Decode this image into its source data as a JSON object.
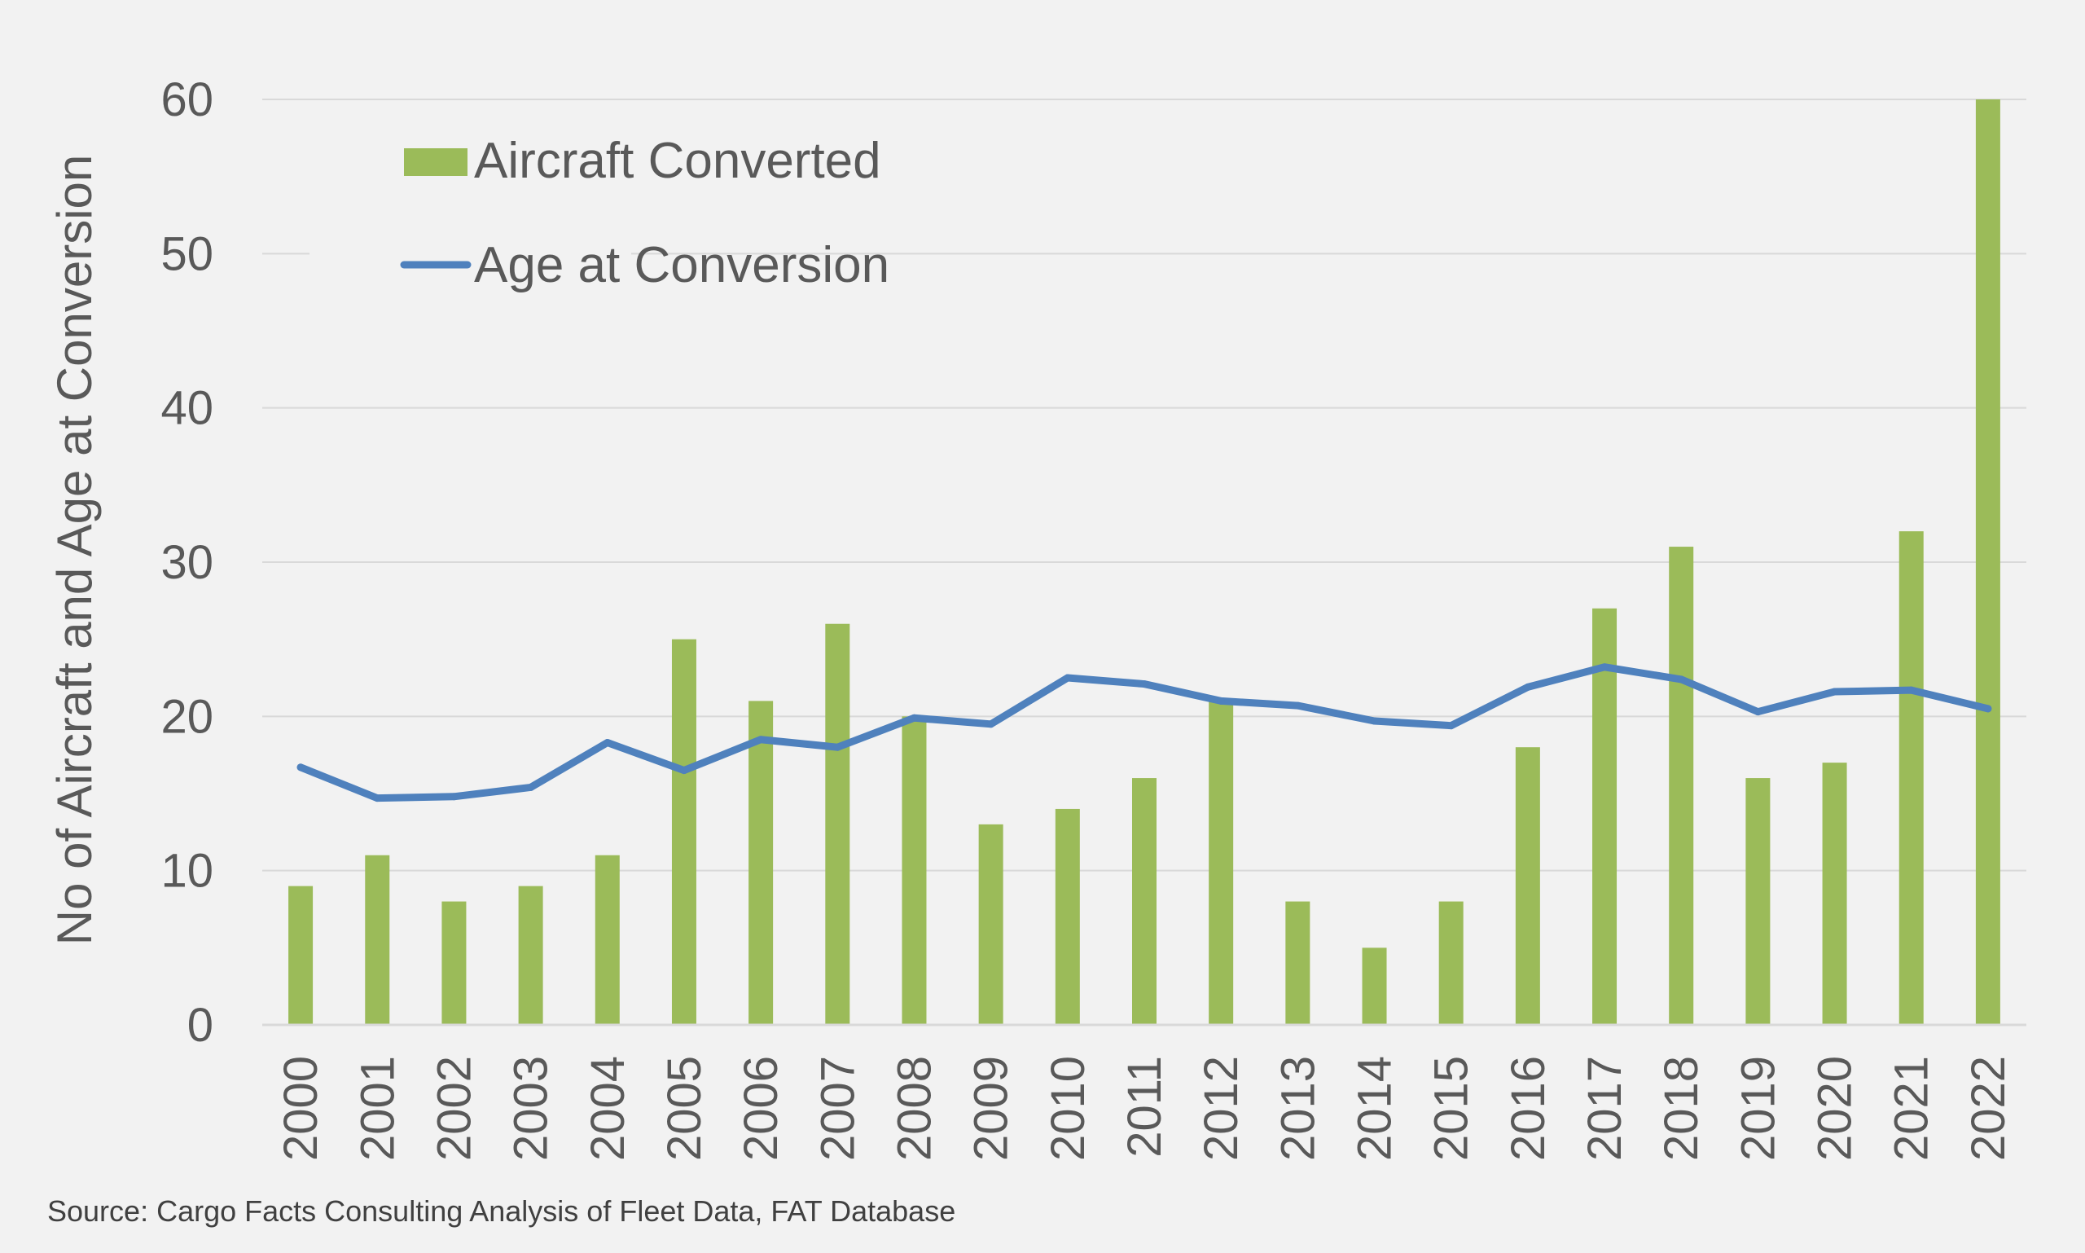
{
  "chart_data": {
    "type": "bar",
    "title": "",
    "xlabel": "",
    "ylabel": "No of Aircraft and Age at Conversion",
    "ylim": [
      0,
      60
    ],
    "yticks": [
      0,
      10,
      20,
      30,
      40,
      50,
      60
    ],
    "grid": true,
    "legend_position": "top-left",
    "categories": [
      "2000",
      "2001",
      "2002",
      "2003",
      "2004",
      "2005",
      "2006",
      "2007",
      "2008",
      "2009",
      "2010",
      "2011",
      "2012",
      "2013",
      "2014",
      "2015",
      "2016",
      "2017",
      "2018",
      "2019",
      "2020",
      "2021",
      "2022"
    ],
    "series": [
      {
        "name": "Aircraft Converted",
        "type": "bar",
        "color": "#9bbb59",
        "values": [
          9,
          11,
          8,
          9,
          11,
          25,
          21,
          26,
          20,
          13,
          14,
          16,
          21,
          8,
          5,
          8,
          18,
          27,
          31,
          16,
          17,
          32,
          60
        ]
      },
      {
        "name": "Age at Conversion",
        "type": "line",
        "color": "#4f81bd",
        "values": [
          16.7,
          14.7,
          14.8,
          15.4,
          18.3,
          16.5,
          18.5,
          18.0,
          19.9,
          19.5,
          22.5,
          22.1,
          21.0,
          20.7,
          19.7,
          19.4,
          21.9,
          23.2,
          22.4,
          20.3,
          21.6,
          21.7,
          20.5
        ]
      }
    ],
    "source": "Source: Cargo Facts Consulting Analysis of Fleet Data, FAT Database"
  }
}
